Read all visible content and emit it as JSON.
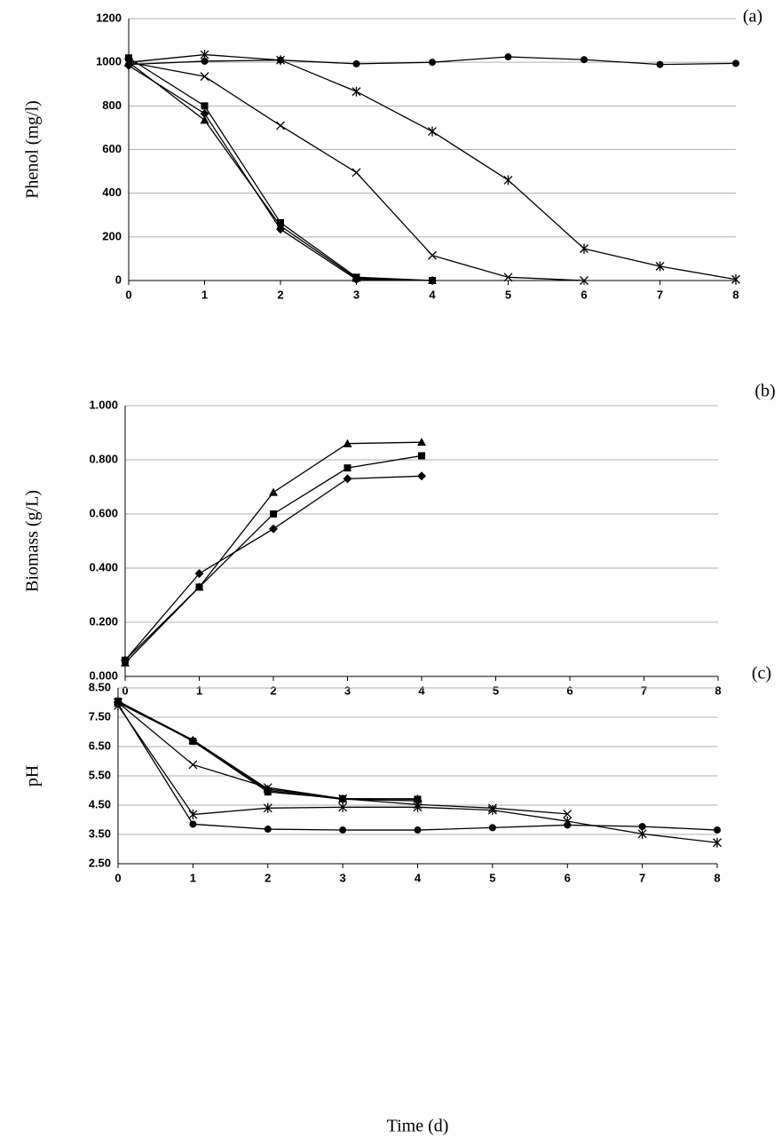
{
  "chart_data": [
    {
      "type": "line",
      "tag": "(a)",
      "y_label": "Phenol (mg/l)",
      "x": [
        0,
        1,
        2,
        3,
        4,
        5,
        6,
        7,
        8
      ],
      "xlim": [
        0,
        8
      ],
      "xticks": [
        0,
        1,
        2,
        3,
        4,
        5,
        6,
        7,
        8
      ],
      "ylim": [
        0,
        1200
      ],
      "yticks": [
        0,
        200,
        400,
        600,
        800,
        1000,
        1200
      ],
      "grid": true,
      "series": [
        {
          "marker": "circle",
          "color": "#000000",
          "values": [
            990,
            1005,
            1010,
            993,
            1000,
            1025,
            1012,
            990,
            995
          ]
        },
        {
          "marker": "asterisk",
          "color": "#000000",
          "values": [
            1000,
            1035,
            1010,
            866,
            683,
            460,
            146,
            65,
            5
          ]
        },
        {
          "marker": "cross",
          "color": "#000000",
          "values": [
            1000,
            935,
            710,
            495,
            115,
            15,
            0,
            null,
            null
          ]
        },
        {
          "marker": "square",
          "color": "#000000",
          "values": [
            1020,
            800,
            265,
            15,
            0,
            null,
            null,
            null,
            null
          ]
        },
        {
          "marker": "triangle",
          "color": "#000000",
          "values": [
            1000,
            735,
            250,
            10,
            0,
            null,
            null,
            null,
            null
          ]
        },
        {
          "marker": "diamond",
          "color": "#000000",
          "values": [
            985,
            765,
            235,
            5,
            0,
            null,
            null,
            null,
            null
          ]
        }
      ]
    },
    {
      "type": "line",
      "tag": "(b)",
      "y_label": "Biomass (g/L)",
      "x": [
        0,
        1,
        2,
        3,
        4,
        5,
        6,
        7,
        8
      ],
      "xlim": [
        0,
        8
      ],
      "xticks": [
        0,
        1,
        2,
        3,
        4,
        5,
        6,
        7,
        8
      ],
      "ylim": [
        0,
        1
      ],
      "yticks": [
        {
          "value": 0,
          "label": "0.000"
        },
        {
          "value": 0.2,
          "label": "0.200"
        },
        {
          "value": 0.4,
          "label": "0.400"
        },
        {
          "value": 0.6,
          "label": "0.600"
        },
        {
          "value": 0.8,
          "label": "0.800"
        },
        {
          "value": 1,
          "label": "1.000"
        }
      ],
      "grid": true,
      "series": [
        {
          "marker": "triangle",
          "color": "#000000",
          "values": [
            0.05,
            0.33,
            0.68,
            0.86,
            0.865,
            null,
            null,
            null,
            null
          ]
        },
        {
          "marker": "square",
          "color": "#000000",
          "values": [
            0.06,
            0.33,
            0.6,
            0.77,
            0.815,
            null,
            null,
            null,
            null
          ]
        },
        {
          "marker": "diamond",
          "color": "#000000",
          "values": [
            0.06,
            0.38,
            0.545,
            0.73,
            0.74,
            null,
            null,
            null,
            null
          ]
        }
      ]
    },
    {
      "type": "line",
      "tag": "(c)",
      "y_label": "pH",
      "x_label": "Time (d)",
      "x": [
        0,
        1,
        2,
        3,
        4,
        5,
        6,
        7,
        8
      ],
      "xlim": [
        0,
        8
      ],
      "xticks": [
        0,
        1,
        2,
        3,
        4,
        5,
        6,
        7,
        8
      ],
      "ylim": [
        2.5,
        8.5
      ],
      "yticks": [
        {
          "value": 2.5,
          "label": "2.50"
        },
        {
          "value": 3.5,
          "label": "3.50"
        },
        {
          "value": 4.5,
          "label": "4.50"
        },
        {
          "value": 5.5,
          "label": "5.50"
        },
        {
          "value": 6.5,
          "label": "6.50"
        },
        {
          "value": 7.5,
          "label": "7.50"
        },
        {
          "value": 8.5,
          "label": "8.50"
        }
      ],
      "grid": true,
      "series": [
        {
          "marker": "circle",
          "color": "#000000",
          "values": [
            7.95,
            3.85,
            3.68,
            3.65,
            3.65,
            3.73,
            3.82,
            3.77,
            3.65
          ]
        },
        {
          "marker": "asterisk",
          "color": "#000000",
          "values": [
            7.9,
            4.18,
            4.4,
            4.43,
            4.43,
            4.33,
            3.95,
            3.52,
            3.22
          ]
        },
        {
          "marker": "cross",
          "color": "#000000",
          "values": [
            8.0,
            5.88,
            5.1,
            4.72,
            4.52,
            4.4,
            4.2,
            null,
            null
          ]
        },
        {
          "marker": "square",
          "color": "#000000",
          "values": [
            8.05,
            6.68,
            4.95,
            4.72,
            4.7,
            null,
            null,
            null,
            null
          ]
        },
        {
          "marker": "triangle",
          "color": "#000000",
          "values": [
            8.05,
            6.72,
            5.05,
            4.72,
            4.72,
            null,
            null,
            null,
            null
          ]
        },
        {
          "marker": "diamond",
          "color": "#000000",
          "values": [
            8.0,
            6.7,
            5.0,
            4.7,
            4.65,
            null,
            null,
            null,
            null
          ]
        }
      ]
    }
  ]
}
